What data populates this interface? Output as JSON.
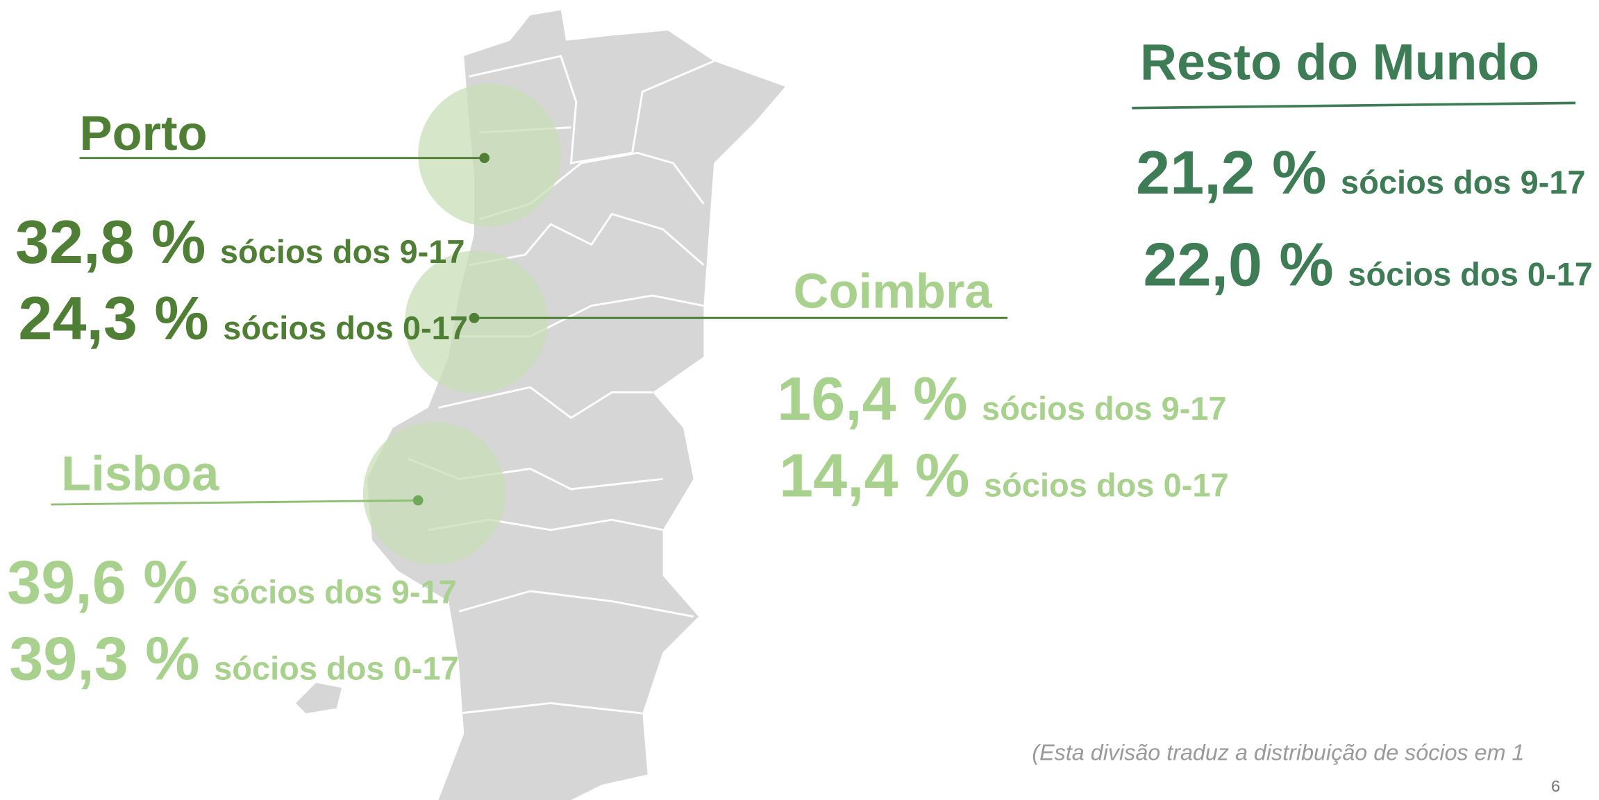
{
  "regions": [
    {
      "name": "Porto",
      "stats": [
        {
          "value": "32,8 %",
          "label": "sócios dos 9-17"
        },
        {
          "value": "24,3 %",
          "label": "sócios dos 0-17"
        }
      ]
    },
    {
      "name": "Coimbra",
      "stats": [
        {
          "value": "16,4 %",
          "label": "sócios dos 9-17"
        },
        {
          "value": "14,4 %",
          "label": "sócios dos 0-17"
        }
      ]
    },
    {
      "name": "Lisboa",
      "stats": [
        {
          "value": "39,6 %",
          "label": "sócios dos 9-17"
        },
        {
          "value": "39,3 %",
          "label": "sócios dos 0-17"
        }
      ]
    },
    {
      "name": "Resto do Mundo",
      "stats": [
        {
          "value": "21,2 %",
          "label": "sócios dos 9-17"
        },
        {
          "value": "22,0 %",
          "label": "sócios dos 0-17"
        }
      ]
    }
  ],
  "footnote": "(Esta divisão traduz a distribuição de sócios em 1",
  "page_number": "6"
}
